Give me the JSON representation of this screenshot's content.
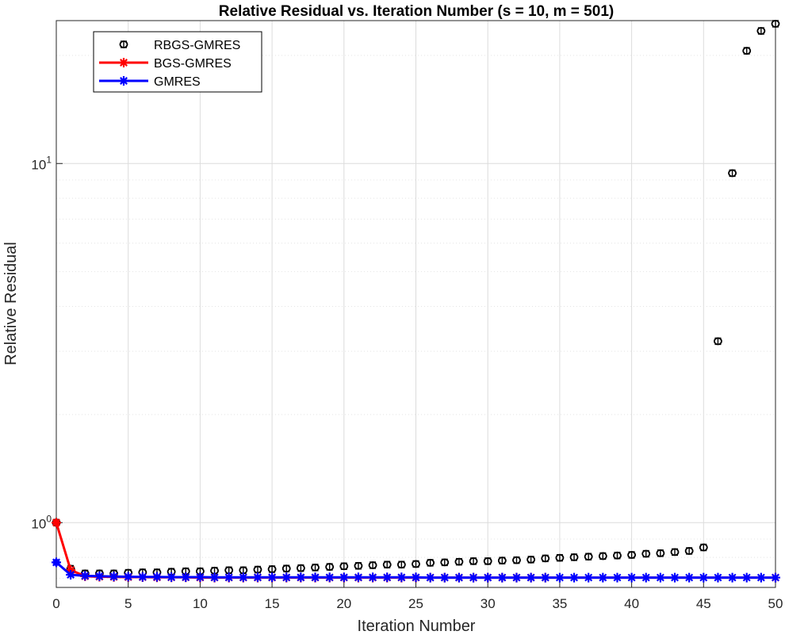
{
  "chart_data": {
    "type": "line",
    "title": "Relative Residual vs. Iteration Number (s = 10, m = 501)",
    "xlabel": "Iteration Number",
    "ylabel": "Relative Residual",
    "xlim": [
      0,
      50
    ],
    "ylim": [
      0.66,
      25
    ],
    "yscale": "log",
    "grid": true,
    "legend_position": "top-left",
    "x_ticks": [
      0,
      5,
      10,
      15,
      20,
      25,
      30,
      35,
      40,
      45,
      50
    ],
    "y_ticks": [
      {
        "base": "10",
        "exp": "0",
        "value": 1
      },
      {
        "base": "10",
        "exp": "1",
        "value": 10
      }
    ],
    "series": [
      {
        "name": "RBGS-GMRES",
        "color": "#000000",
        "marker": "o-errorbar",
        "line": false,
        "x": [
          0,
          1,
          2,
          3,
          4,
          5,
          6,
          7,
          8,
          9,
          10,
          11,
          12,
          13,
          14,
          15,
          16,
          17,
          18,
          19,
          20,
          21,
          22,
          23,
          24,
          25,
          26,
          27,
          28,
          29,
          30,
          31,
          32,
          33,
          34,
          35,
          36,
          37,
          38,
          39,
          40,
          41,
          42,
          43,
          44,
          45,
          46,
          47,
          48,
          49,
          50
        ],
        "y": [
          1.0,
          0.744,
          0.722,
          0.722,
          0.722,
          0.725,
          0.727,
          0.727,
          0.73,
          0.732,
          0.732,
          0.735,
          0.737,
          0.737,
          0.74,
          0.742,
          0.745,
          0.747,
          0.75,
          0.753,
          0.756,
          0.758,
          0.761,
          0.764,
          0.764,
          0.767,
          0.773,
          0.775,
          0.778,
          0.781,
          0.781,
          0.784,
          0.786,
          0.789,
          0.795,
          0.798,
          0.801,
          0.804,
          0.807,
          0.81,
          0.813,
          0.819,
          0.822,
          0.828,
          0.834,
          0.853,
          3.2,
          9.4,
          20.6,
          23.4,
          24.5
        ]
      },
      {
        "name": "BGS-GMRES",
        "color": "#ff0000",
        "marker": "asterisk",
        "line": true,
        "x": [
          0,
          1,
          2,
          3,
          4,
          5,
          6,
          7,
          8,
          9,
          10,
          11,
          12,
          13,
          14,
          15,
          16,
          17,
          18,
          19,
          20,
          21,
          22,
          23,
          24,
          25,
          26,
          27,
          28,
          29,
          30,
          31,
          32,
          33,
          34,
          50
        ],
        "y": [
          1.0,
          0.738,
          0.709,
          0.707,
          0.706,
          0.705,
          0.705,
          0.704,
          0.704,
          0.704,
          0.703,
          0.703,
          0.703,
          0.703,
          0.703,
          0.703,
          0.703,
          0.703,
          0.703,
          0.703,
          0.703,
          0.703,
          0.703,
          0.703,
          0.703,
          0.703,
          0.703,
          0.703,
          0.703,
          0.703,
          0.703,
          0.703,
          0.703,
          0.703,
          0.703,
          0.703
        ]
      },
      {
        "name": "GMRES",
        "color": "#0000ff",
        "marker": "asterisk",
        "line": true,
        "x": [
          0,
          1,
          2,
          3,
          4,
          5,
          6,
          7,
          8,
          9,
          10,
          11,
          12,
          13,
          14,
          15,
          16,
          17,
          18,
          19,
          20,
          21,
          22,
          23,
          24,
          25,
          26,
          27,
          28,
          29,
          30,
          31,
          32,
          33,
          34,
          35,
          36,
          37,
          38,
          39,
          40,
          41,
          42,
          43,
          44,
          45,
          46,
          47,
          48,
          49,
          50
        ],
        "y": [
          0.775,
          0.716,
          0.711,
          0.709,
          0.708,
          0.707,
          0.706,
          0.706,
          0.705,
          0.705,
          0.705,
          0.704,
          0.704,
          0.704,
          0.704,
          0.704,
          0.704,
          0.704,
          0.704,
          0.704,
          0.704,
          0.704,
          0.704,
          0.704,
          0.704,
          0.704,
          0.703,
          0.703,
          0.703,
          0.703,
          0.703,
          0.703,
          0.703,
          0.703,
          0.703,
          0.703,
          0.703,
          0.703,
          0.703,
          0.703,
          0.703,
          0.703,
          0.703,
          0.703,
          0.703,
          0.703,
          0.703,
          0.703,
          0.703,
          0.703,
          0.703
        ]
      }
    ]
  }
}
